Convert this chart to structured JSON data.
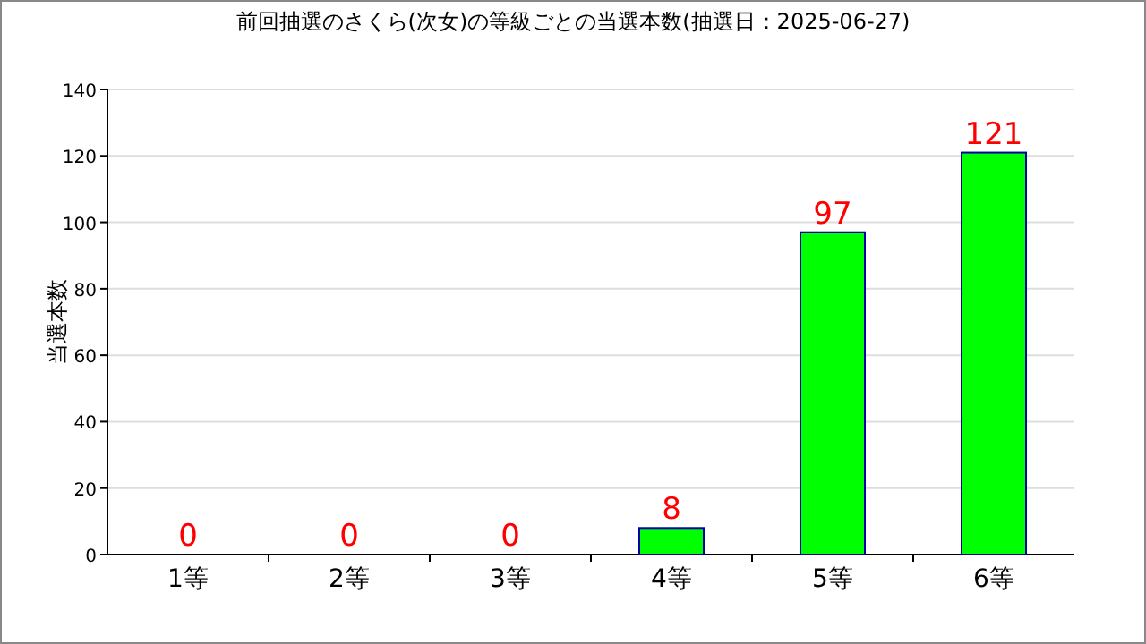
{
  "chart_data": {
    "type": "bar",
    "title": "前回抽選のさくら(次女)の等級ごとの当選本数(抽選日：2025-06-27)",
    "ylabel": "当選本数",
    "categories": [
      "1等",
      "2等",
      "3等",
      "4等",
      "5等",
      "6等"
    ],
    "values": [
      0,
      0,
      0,
      8,
      97,
      121
    ],
    "color": "#00ff00",
    "ylim": [
      0,
      140
    ],
    "yticks": [
      0,
      20,
      40,
      60,
      80,
      100,
      120,
      140
    ],
    "grid": "y",
    "data_labels": true
  }
}
